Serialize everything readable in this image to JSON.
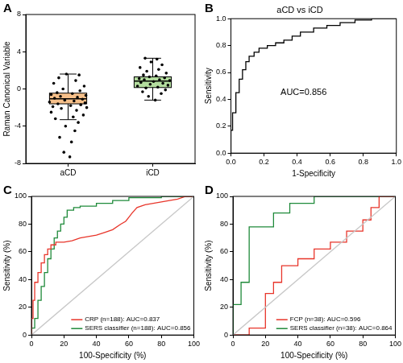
{
  "chart_data": [
    {
      "panel": "A",
      "type": "box",
      "ylabel": "Raman Canonical Variable",
      "categories": [
        "aCD",
        "iCD"
      ],
      "xlim": [
        -0.5,
        1.5
      ],
      "ylim": [
        -8,
        8
      ],
      "yticks": [
        -8,
        -4,
        0,
        4,
        8
      ],
      "grid": false,
      "colors": [
        "#f6c08a",
        "#b3dc9e"
      ],
      "boxes": [
        {
          "whisker_low": -3.3,
          "q1": -1.6,
          "median": -1.05,
          "q3": -0.45,
          "whisker_high": 1.6
        },
        {
          "whisker_low": -1.2,
          "q1": 0.15,
          "median": 0.85,
          "q3": 1.3,
          "whisker_high": 3.3
        }
      ],
      "points": [
        {
          "color": "#000000",
          "marker": "circle",
          "x": [
            0.02,
            -0.05,
            0.04,
            -0.1,
            0.08,
            -0.03,
            0.12,
            -0.15,
            0.06,
            0.18,
            -0.2,
            0.1,
            -0.08,
            0.22,
            -0.18,
            0.03,
            0.15,
            -0.12,
            0.2,
            -0.22,
            0.07,
            -0.04,
            0.17,
            -0.16,
            0.11,
            -0.09,
            0.21,
            -0.2,
            0.05,
            -0.13,
            0.14,
            -0.06,
            0.19,
            -0.17,
            0.09,
            -0.11,
            0.13,
            -0.02
          ],
          "values": [
            -7.3,
            -6.8,
            -5.7,
            -5.2,
            -4.5,
            -4.0,
            -3.6,
            -3.2,
            -3.0,
            -2.8,
            -2.5,
            -2.3,
            -2.1,
            -2.0,
            -1.9,
            -1.8,
            -1.7,
            -1.6,
            -1.5,
            -1.4,
            -1.3,
            -1.2,
            -1.1,
            -1.0,
            -0.9,
            -0.8,
            -0.7,
            -0.6,
            -0.5,
            -0.4,
            -0.2,
            0.0,
            0.3,
            0.6,
            0.9,
            1.2,
            1.5,
            1.6
          ]
        },
        {
          "color": "#000000",
          "marker": "circle",
          "x": [
            1.03,
            0.95,
            1.1,
            0.88,
            1.15,
            0.92,
            1.06,
            0.82,
            1.18,
            0.97,
            1.12,
            0.86,
            1.01,
            1.2,
            0.9,
            1.08,
            0.84,
            1.14,
            0.96,
            1.04,
            0.89,
            1.16,
            0.93,
            1.07,
            0.85,
            1.11,
            0.98,
            1.05,
            0.91
          ],
          "values": [
            -1.2,
            -0.8,
            -0.5,
            -0.3,
            -0.1,
            0.1,
            0.2,
            0.3,
            0.4,
            0.5,
            0.6,
            0.7,
            0.8,
            0.9,
            1.0,
            1.0,
            1.1,
            1.2,
            1.3,
            1.4,
            1.5,
            1.7,
            1.9,
            2.1,
            2.3,
            2.6,
            2.9,
            3.2,
            3.3
          ]
        }
      ]
    },
    {
      "panel": "B",
      "type": "line",
      "title": "aCD vs iCD",
      "xlabel": "1-Specificity",
      "ylabel": "Sensitivity",
      "xlim": [
        0,
        1
      ],
      "xticks": [
        {
          "value": 0,
          "label": "0.0"
        },
        0.2,
        0.4,
        0.6,
        0.8,
        {
          "value": 1,
          "label": "1.0"
        }
      ],
      "ylim": [
        0,
        1
      ],
      "yticks": [
        {
          "value": 0,
          "label": "0.0"
        },
        0.2,
        0.4,
        0.6,
        0.8,
        {
          "value": 1,
          "label": "1.0"
        }
      ],
      "grid": false,
      "annotations": [
        {
          "text": "AUC=0.856",
          "x": 0.3,
          "y": 0.45
        }
      ],
      "series": [
        {
          "color": "#000000",
          "line_style": "solid",
          "x": [
            0,
            0,
            0.01,
            0.01,
            0.03,
            0.03,
            0.05,
            0.05,
            0.07,
            0.07,
            0.09,
            0.09,
            0.11,
            0.11,
            0.14,
            0.14,
            0.17,
            0.17,
            0.22,
            0.22,
            0.27,
            0.27,
            0.32,
            0.32,
            0.37,
            0.37,
            0.42,
            0.42,
            0.5,
            0.5,
            0.58,
            0.58,
            0.66,
            0.66,
            0.75,
            0.75,
            0.85,
            0.85,
            1.0
          ],
          "values": [
            0,
            0.17,
            0.17,
            0.3,
            0.3,
            0.45,
            0.45,
            0.55,
            0.55,
            0.62,
            0.62,
            0.68,
            0.68,
            0.72,
            0.72,
            0.75,
            0.75,
            0.78,
            0.78,
            0.8,
            0.8,
            0.82,
            0.82,
            0.84,
            0.84,
            0.87,
            0.87,
            0.9,
            0.9,
            0.93,
            0.93,
            0.95,
            0.95,
            0.97,
            0.97,
            0.99,
            0.99,
            1.0,
            1.0
          ]
        }
      ]
    },
    {
      "panel": "C",
      "type": "line",
      "xlabel": "100-Specificity (%)",
      "ylabel": "Sensitivity (%)",
      "xlim": [
        0,
        100
      ],
      "xticks": [
        0,
        20,
        40,
        60,
        80,
        100
      ],
      "ylim": [
        0,
        100
      ],
      "yticks": [
        0,
        20,
        40,
        60,
        80,
        100
      ],
      "grid": false,
      "legend": "lower right",
      "series": [
        {
          "color": "#c8c8c8",
          "line_style": "solid",
          "x": [
            0,
            100
          ],
          "values": [
            0,
            100
          ]
        },
        {
          "name": "CRP (n=188): AUC=0.837",
          "color": "#e8352a",
          "line_style": "solid",
          "x": [
            0,
            0,
            1,
            1,
            2,
            2,
            4,
            4,
            6,
            6,
            8,
            8,
            10,
            10,
            12,
            12,
            15,
            15,
            20,
            25,
            30,
            35,
            40,
            45,
            50,
            55,
            58,
            60,
            62,
            65,
            70,
            75,
            80,
            85,
            90,
            95,
            100
          ],
          "values": [
            0,
            12,
            12,
            25,
            25,
            38,
            38,
            45,
            45,
            52,
            52,
            58,
            58,
            62,
            62,
            65,
            65,
            67,
            67,
            68,
            70,
            71,
            72,
            74,
            76,
            80,
            82,
            85,
            88,
            92,
            94,
            95,
            96,
            97,
            98,
            100,
            100
          ]
        },
        {
          "name": "SERS classifier (n=188): AUC=0.856",
          "color": "#1f8a3a",
          "line_style": "solid",
          "x": [
            0,
            0,
            2,
            2,
            4,
            4,
            6,
            6,
            8,
            8,
            10,
            10,
            12,
            12,
            14,
            14,
            16,
            16,
            18,
            18,
            20,
            20,
            22,
            22,
            26,
            26,
            30,
            30,
            40,
            40,
            50,
            50,
            60,
            60,
            80,
            80,
            100
          ],
          "values": [
            0,
            5,
            5,
            12,
            12,
            25,
            25,
            35,
            35,
            45,
            45,
            55,
            55,
            62,
            62,
            70,
            70,
            75,
            75,
            80,
            80,
            85,
            85,
            90,
            90,
            92,
            92,
            93,
            93,
            95,
            95,
            97,
            97,
            99,
            99,
            100,
            100
          ]
        }
      ]
    },
    {
      "panel": "D",
      "type": "line",
      "xlabel": "100-Specificity (%)",
      "ylabel": "Sensitivity (%)",
      "xlim": [
        0,
        100
      ],
      "xticks": [
        0,
        20,
        40,
        60,
        80,
        100
      ],
      "ylim": [
        0,
        100
      ],
      "yticks": [
        0,
        20,
        40,
        60,
        80,
        100
      ],
      "grid": false,
      "legend": "lower right",
      "series": [
        {
          "color": "#c8c8c8",
          "line_style": "solid",
          "x": [
            0,
            100
          ],
          "values": [
            0,
            100
          ]
        },
        {
          "name": "FCP (n=38): AUC=0.596",
          "color": "#e8352a",
          "line_style": "solid",
          "x": [
            0,
            10,
            10,
            20,
            20,
            25,
            25,
            30,
            30,
            40,
            40,
            50,
            50,
            60,
            60,
            70,
            70,
            80,
            80,
            85,
            85,
            90,
            90,
            100
          ],
          "values": [
            0,
            0,
            5,
            5,
            30,
            30,
            38,
            38,
            50,
            50,
            55,
            55,
            62,
            62,
            67,
            67,
            75,
            75,
            83,
            83,
            92,
            92,
            100,
            100
          ]
        },
        {
          "name": "SERS classifier (n=38): AUC=0.864",
          "color": "#1f8a3a",
          "line_style": "solid",
          "x": [
            0,
            0,
            5,
            5,
            10,
            10,
            25,
            25,
            35,
            35,
            50,
            50,
            100
          ],
          "values": [
            0,
            22,
            22,
            38,
            38,
            78,
            78,
            88,
            88,
            95,
            95,
            100,
            100
          ]
        }
      ]
    }
  ]
}
